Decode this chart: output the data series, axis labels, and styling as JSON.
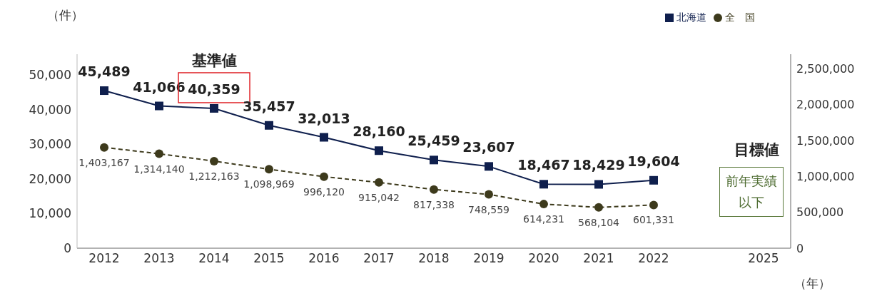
{
  "chart_data": {
    "type": "line",
    "xlabel": "（年）",
    "ylabel": "（件）",
    "categories": [
      "2012",
      "2013",
      "2014",
      "2015",
      "2016",
      "2017",
      "2018",
      "2019",
      "2020",
      "2021",
      "2022",
      null,
      "2025"
    ],
    "series": [
      {
        "name": "北海道",
        "color": "#0f1f4d",
        "marker": "square",
        "line_style": "solid",
        "values": [
          45489,
          41066,
          40359,
          35457,
          32013,
          28160,
          25459,
          23607,
          18467,
          18429,
          19604,
          null,
          null
        ],
        "value_labels": [
          "45,489",
          "41,066",
          "40,359",
          "35,457",
          "32,013",
          "28,160",
          "25,459",
          "23,607",
          "18,467",
          "18,429",
          "19,604",
          null,
          null
        ]
      },
      {
        "name": "全　国",
        "color": "#3d3a1c",
        "marker": "circle",
        "line_style": "dashed",
        "axis": "y2",
        "values": [
          1403167,
          1314140,
          1212163,
          1098969,
          996120,
          915042,
          817338,
          748559,
          614231,
          568104,
          601331,
          null,
          null
        ],
        "value_labels": [
          "1,403,167",
          "1,314,140",
          "1,212,163",
          "1,098,969",
          "996,120",
          "915,042",
          "817,338",
          "748,559",
          "614,231",
          "568,104",
          "601,331",
          null,
          null
        ]
      }
    ],
    "ylim": [
      0,
      56000
    ],
    "yticks": [
      0,
      {
        "value": 10000,
        "label": "10,000"
      },
      {
        "value": 20000,
        "label": "20,000"
      },
      {
        "value": 30000,
        "label": "30,000"
      },
      {
        "value": 40000,
        "label": "40,000"
      },
      {
        "value": 50000,
        "label": "50,000"
      }
    ],
    "y2lim": [
      0,
      2700000
    ],
    "y2ticks": [
      0,
      {
        "value": 500000,
        "label": "500,000"
      },
      {
        "value": 1000000,
        "label": "1,000,000"
      },
      {
        "value": 1500000,
        "label": "1,500,000"
      },
      {
        "value": 2000000,
        "label": "2,000,000"
      },
      {
        "value": 2500000,
        "label": "2,500,000"
      }
    ],
    "grid": false,
    "legend": "top right",
    "annotations": [
      {
        "text": "基準値",
        "x": "2014",
        "y": 40359
      },
      "目標値",
      "前年実績以下"
    ]
  }
}
